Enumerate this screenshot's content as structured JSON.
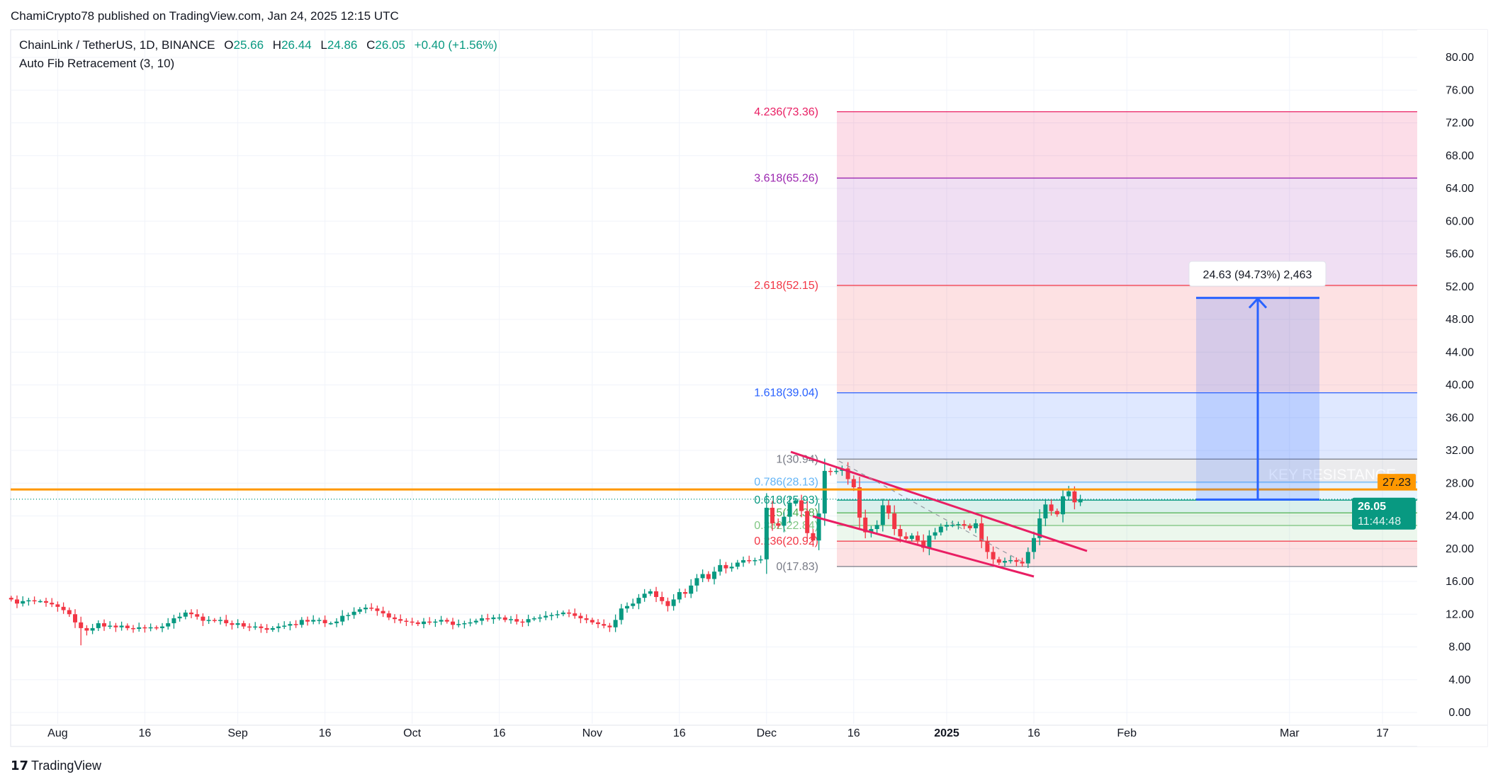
{
  "header": {
    "published": "ChamiCrypto78 published on TradingView.com, Jan 24, 2025 12:15 UTC"
  },
  "legend": {
    "symbol": "ChainLink / TetherUS, 1D, BINANCE",
    "o_label": "O",
    "o": "25.66",
    "h_label": "H",
    "h": "26.44",
    "l_label": "L",
    "l": "24.86",
    "c_label": "C",
    "c": "26.05",
    "change": "+0.40 (+1.56%)",
    "indicator": "Auto Fib Retracement (3, 10)"
  },
  "footer": {
    "logo": "TradingView"
  },
  "colors": {
    "up": "#089981",
    "down": "#f23645",
    "resistance": "#ff9800",
    "channel": "#e91e63",
    "measure": "#2962ff"
  },
  "chart_data": {
    "type": "candlestick",
    "title": "ChainLink / TetherUS, 1D, BINANCE",
    "ylim": [
      0,
      80
    ],
    "y_ticks": [
      "80.00",
      "76.00",
      "72.00",
      "68.00",
      "64.00",
      "60.00",
      "56.00",
      "52.00",
      "48.00",
      "44.00",
      "40.00",
      "36.00",
      "32.00",
      "28.00",
      "24.00",
      "20.00",
      "16.00",
      "12.00",
      "8.00",
      "4.00",
      "0.00"
    ],
    "x_ticks": [
      {
        "label": "Aug",
        "day": -153
      },
      {
        "label": "16",
        "day": -138
      },
      {
        "label": "Sep",
        "day": -122
      },
      {
        "label": "16",
        "day": -107
      },
      {
        "label": "Oct",
        "day": -92
      },
      {
        "label": "16",
        "day": -77
      },
      {
        "label": "Nov",
        "day": -61
      },
      {
        "label": "16",
        "day": -46
      },
      {
        "label": "Dec",
        "day": -31
      },
      {
        "label": "16",
        "day": -16
      },
      {
        "label": "2025",
        "day": 0
      },
      {
        "label": "16",
        "day": 15
      },
      {
        "label": "Feb",
        "day": 31
      },
      {
        "label": "Mar",
        "day": 59
      },
      {
        "label": "17",
        "day": 75
      }
    ],
    "last_day": 23,
    "closes": [
      13.8,
      13.3,
      13.6,
      13.7,
      13.6,
      13.6,
      13.4,
      13.2,
      12.9,
      12.5,
      12.0,
      11.0,
      10.3,
      10.0,
      10.3,
      10.9,
      10.5,
      10.6,
      10.4,
      10.6,
      10.3,
      10.2,
      10.4,
      10.3,
      10.4,
      10.3,
      10.5,
      10.9,
      11.5,
      11.7,
      12.2,
      12.0,
      11.7,
      11.2,
      11.3,
      11.2,
      11.3,
      10.9,
      10.7,
      10.9,
      10.5,
      10.4,
      10.5,
      10.3,
      10.1,
      10.3,
      10.5,
      10.6,
      10.8,
      10.7,
      11.3,
      11.1,
      11.3,
      11.3,
      10.9,
      10.9,
      11.1,
      11.8,
      11.9,
      12.3,
      12.6,
      12.8,
      12.7,
      12.4,
      12.1,
      11.6,
      11.4,
      11.2,
      11.1,
      11.0,
      10.8,
      11.1,
      11.0,
      11.1,
      11.3,
      11.1,
      10.7,
      10.8,
      10.9,
      11.0,
      11.2,
      11.5,
      11.4,
      11.6,
      11.6,
      11.3,
      11.4,
      11.1,
      11.0,
      11.4,
      11.5,
      11.6,
      11.8,
      11.9,
      12.0,
      12.2,
      12.1,
      11.8,
      11.5,
      11.3,
      11.0,
      10.8,
      10.6,
      10.4,
      11.3,
      12.7,
      13.0,
      13.3,
      14.0,
      14.5,
      14.8,
      14.1,
      13.6,
      13.0,
      13.8,
      14.7,
      14.5,
      15.5,
      16.4,
      16.9,
      16.3,
      17.2,
      18.0,
      17.6,
      17.8,
      18.3,
      18.6,
      18.5,
      18.6,
      18.7,
      25.0,
      23.1,
      22.8,
      23.9,
      25.5,
      25.9,
      24.6,
      21.9,
      21.0,
      24.3,
      29.5,
      29.4,
      29.5,
      29.8,
      28.5,
      27.5,
      23.8,
      22.0,
      22.4,
      22.9,
      25.3,
      24.3,
      22.4,
      21.5,
      21.2,
      21.6,
      21.0,
      20.1,
      21.6,
      22.0,
      22.7,
      22.9,
      22.9,
      23.0,
      22.8,
      22.5,
      23.1,
      20.9,
      19.6,
      18.7,
      18.3,
      18.5,
      18.6,
      18.4,
      18.2,
      19.6,
      21.3,
      23.7,
      25.4,
      24.6,
      24.2,
      26.4,
      27.0,
      25.66,
      26.05
    ],
    "fib_levels": [
      {
        "label": "4.236(73.36)",
        "price": 73.36,
        "color": "#e91e63"
      },
      {
        "label": "3.618(65.26)",
        "price": 65.26,
        "color": "#9c27b0"
      },
      {
        "label": "2.618(52.15)",
        "price": 52.15,
        "color": "#f23645"
      },
      {
        "label": "1.618(39.04)",
        "price": 39.04,
        "color": "#2962ff"
      },
      {
        "label": "1(30.94)",
        "price": 30.94,
        "color": "#787b86"
      },
      {
        "label": "0.786(28.13)",
        "price": 28.13,
        "color": "#64b5f6"
      },
      {
        "label": "0.618(25.93)",
        "price": 25.93,
        "color": "#089981"
      },
      {
        "label": "0.5(24.38)",
        "price": 24.38,
        "color": "#4caf50"
      },
      {
        "label": "0.382(22.84)",
        "price": 22.84,
        "color": "#81c784"
      },
      {
        "label": "0.236(20.92)",
        "price": 20.92,
        "color": "#f23645"
      },
      {
        "label": "0(17.83)",
        "price": 17.83,
        "color": "#787b86"
      }
    ],
    "resistance": {
      "price": 27.23,
      "label": "27.23",
      "text": "KEY RESISTANCE"
    },
    "last_price": {
      "label": "26.05",
      "price": 26.05,
      "countdown": "11:44:48"
    },
    "measure": {
      "label": "24.63 (94.73%) 2,463",
      "from": 26.0,
      "to": 50.63
    }
  }
}
